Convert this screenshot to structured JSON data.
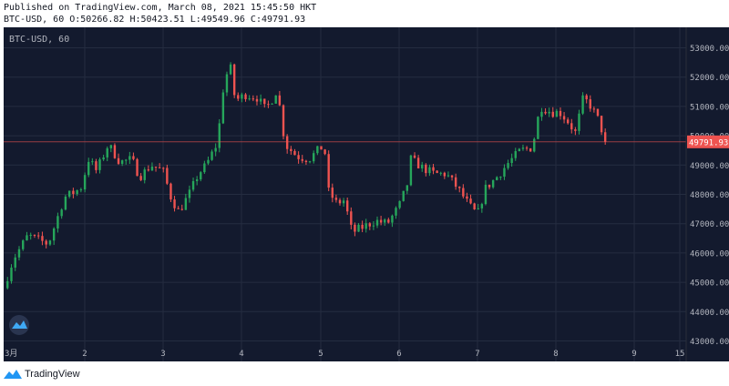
{
  "header": {
    "published": "Published on TradingView.com, March 08, 2021 15:45:50 HKT",
    "ohlc": "BTC-USD, 60 O:50266.82 H:50423.51 L:49549.96 C:49791.93"
  },
  "footer": {
    "brand": "TradingView"
  },
  "colors": {
    "background": "#131a2e",
    "grid": "#242c40",
    "up": "#26a65b",
    "down": "#ef5350",
    "axis_text": "#b2b5be",
    "price_label_bg": "#ef5350"
  },
  "chart_data": {
    "type": "candlestick",
    "symbol_label": "BTC-USD, 60",
    "ylim": [
      42300,
      53700
    ],
    "xlim": [
      1,
      15
    ],
    "y_ticks": [
      "43000.00",
      "44000.00",
      "45000.00",
      "46000.00",
      "47000.00",
      "48000.00",
      "49000.00",
      "50000.00",
      "51000.00",
      "52000.00",
      "53000.00"
    ],
    "x_ticks": [
      {
        "label": "3月",
        "value": 1
      },
      {
        "label": "2",
        "value": 2
      },
      {
        "label": "3",
        "value": 3
      },
      {
        "label": "4",
        "value": 4
      },
      {
        "label": "5",
        "value": 5
      },
      {
        "label": "6",
        "value": 6
      },
      {
        "label": "7",
        "value": 7
      },
      {
        "label": "8",
        "value": 8
      },
      {
        "label": "9",
        "value": 9
      },
      {
        "label": "15",
        "value": 15
      }
    ],
    "last_price": 49791.93,
    "last_price_label": "49791.93",
    "close_path": [
      [
        1.0,
        44800
      ],
      [
        1.12,
        45800
      ],
      [
        1.3,
        46600
      ],
      [
        1.55,
        46300
      ],
      [
        1.75,
        47900
      ],
      [
        1.95,
        48200
      ],
      [
        2.05,
        49200
      ],
      [
        2.15,
        48800
      ],
      [
        2.3,
        49700
      ],
      [
        2.45,
        49100
      ],
      [
        2.6,
        49200
      ],
      [
        2.7,
        48600
      ],
      [
        2.85,
        49000
      ],
      [
        3.0,
        48800
      ],
      [
        3.1,
        47900
      ],
      [
        3.2,
        47400
      ],
      [
        3.35,
        48100
      ],
      [
        3.45,
        48700
      ],
      [
        3.55,
        49000
      ],
      [
        3.7,
        49800
      ],
      [
        3.75,
        51400
      ],
      [
        3.85,
        52500
      ],
      [
        3.92,
        51200
      ],
      [
        4.05,
        51400
      ],
      [
        4.2,
        51300
      ],
      [
        4.3,
        50900
      ],
      [
        4.4,
        51300
      ],
      [
        4.45,
        51600
      ],
      [
        4.55,
        49700
      ],
      [
        4.7,
        49300
      ],
      [
        4.85,
        49200
      ],
      [
        5.0,
        49600
      ],
      [
        5.05,
        49500
      ],
      [
        5.1,
        48100
      ],
      [
        5.2,
        47700
      ],
      [
        5.3,
        47800
      ],
      [
        5.4,
        46700
      ],
      [
        5.55,
        46900
      ],
      [
        5.7,
        47100
      ],
      [
        5.85,
        47000
      ],
      [
        6.0,
        47600
      ],
      [
        6.1,
        48300
      ],
      [
        6.15,
        49200
      ],
      [
        6.3,
        48900
      ],
      [
        6.45,
        48700
      ],
      [
        6.6,
        48700
      ],
      [
        6.75,
        48200
      ],
      [
        6.9,
        47600
      ],
      [
        7.0,
        47300
      ],
      [
        7.1,
        48200
      ],
      [
        7.25,
        48600
      ],
      [
        7.4,
        49100
      ],
      [
        7.55,
        49500
      ],
      [
        7.7,
        49600
      ],
      [
        7.8,
        51000
      ],
      [
        7.95,
        50800
      ],
      [
        8.05,
        50800
      ],
      [
        8.15,
        50500
      ],
      [
        8.25,
        50100
      ],
      [
        8.35,
        51300
      ],
      [
        8.45,
        51000
      ],
      [
        8.55,
        50500
      ],
      [
        8.63,
        49800
      ]
    ]
  }
}
